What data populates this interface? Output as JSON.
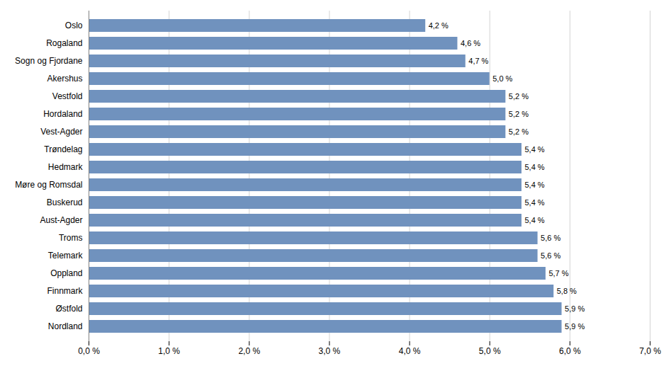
{
  "chart_data": {
    "type": "bar",
    "orientation": "horizontal",
    "categories": [
      "Nordland",
      "Østfold",
      "Finnmark",
      "Oppland",
      "Telemark",
      "Troms",
      "Aust-Agder",
      "Buskerud",
      "Møre og Romsdal",
      "Hedmark",
      "Trøndelag",
      "Vest-Agder",
      "Hordaland",
      "Vestfold",
      "Akershus",
      "Sogn og Fjordane",
      "Rogaland",
      "Oslo"
    ],
    "values": [
      5.9,
      5.9,
      5.8,
      5.7,
      5.6,
      5.6,
      5.4,
      5.4,
      5.4,
      5.4,
      5.4,
      5.2,
      5.2,
      5.2,
      5.0,
      4.7,
      4.6,
      4.2
    ],
    "value_labels": [
      "5,9 %",
      "5,9 %",
      "5,8 %",
      "5,7 %",
      "5,6 %",
      "5,6 %",
      "5,4 %",
      "5,4 %",
      "5,4 %",
      "5,4 %",
      "5,4 %",
      "5,2 %",
      "5,2 %",
      "5,2 %",
      "5,0 %",
      "4,7 %",
      "4,6 %",
      "4,2 %"
    ],
    "data_labels": true,
    "color": "#7092be",
    "xlim": [
      0.0,
      7.0
    ],
    "xticks": [
      {
        "value": 0.0,
        "label": "0,0 %"
      },
      {
        "value": 1.0,
        "label": "1,0 %"
      },
      {
        "value": 2.0,
        "label": "2,0 %"
      },
      {
        "value": 3.0,
        "label": "3,0 %"
      },
      {
        "value": 4.0,
        "label": "4,0 %"
      },
      {
        "value": 5.0,
        "label": "5,0 %"
      },
      {
        "value": 6.0,
        "label": "6,0 %"
      },
      {
        "value": 7.0,
        "label": "7,0 %"
      }
    ],
    "grid": true
  }
}
